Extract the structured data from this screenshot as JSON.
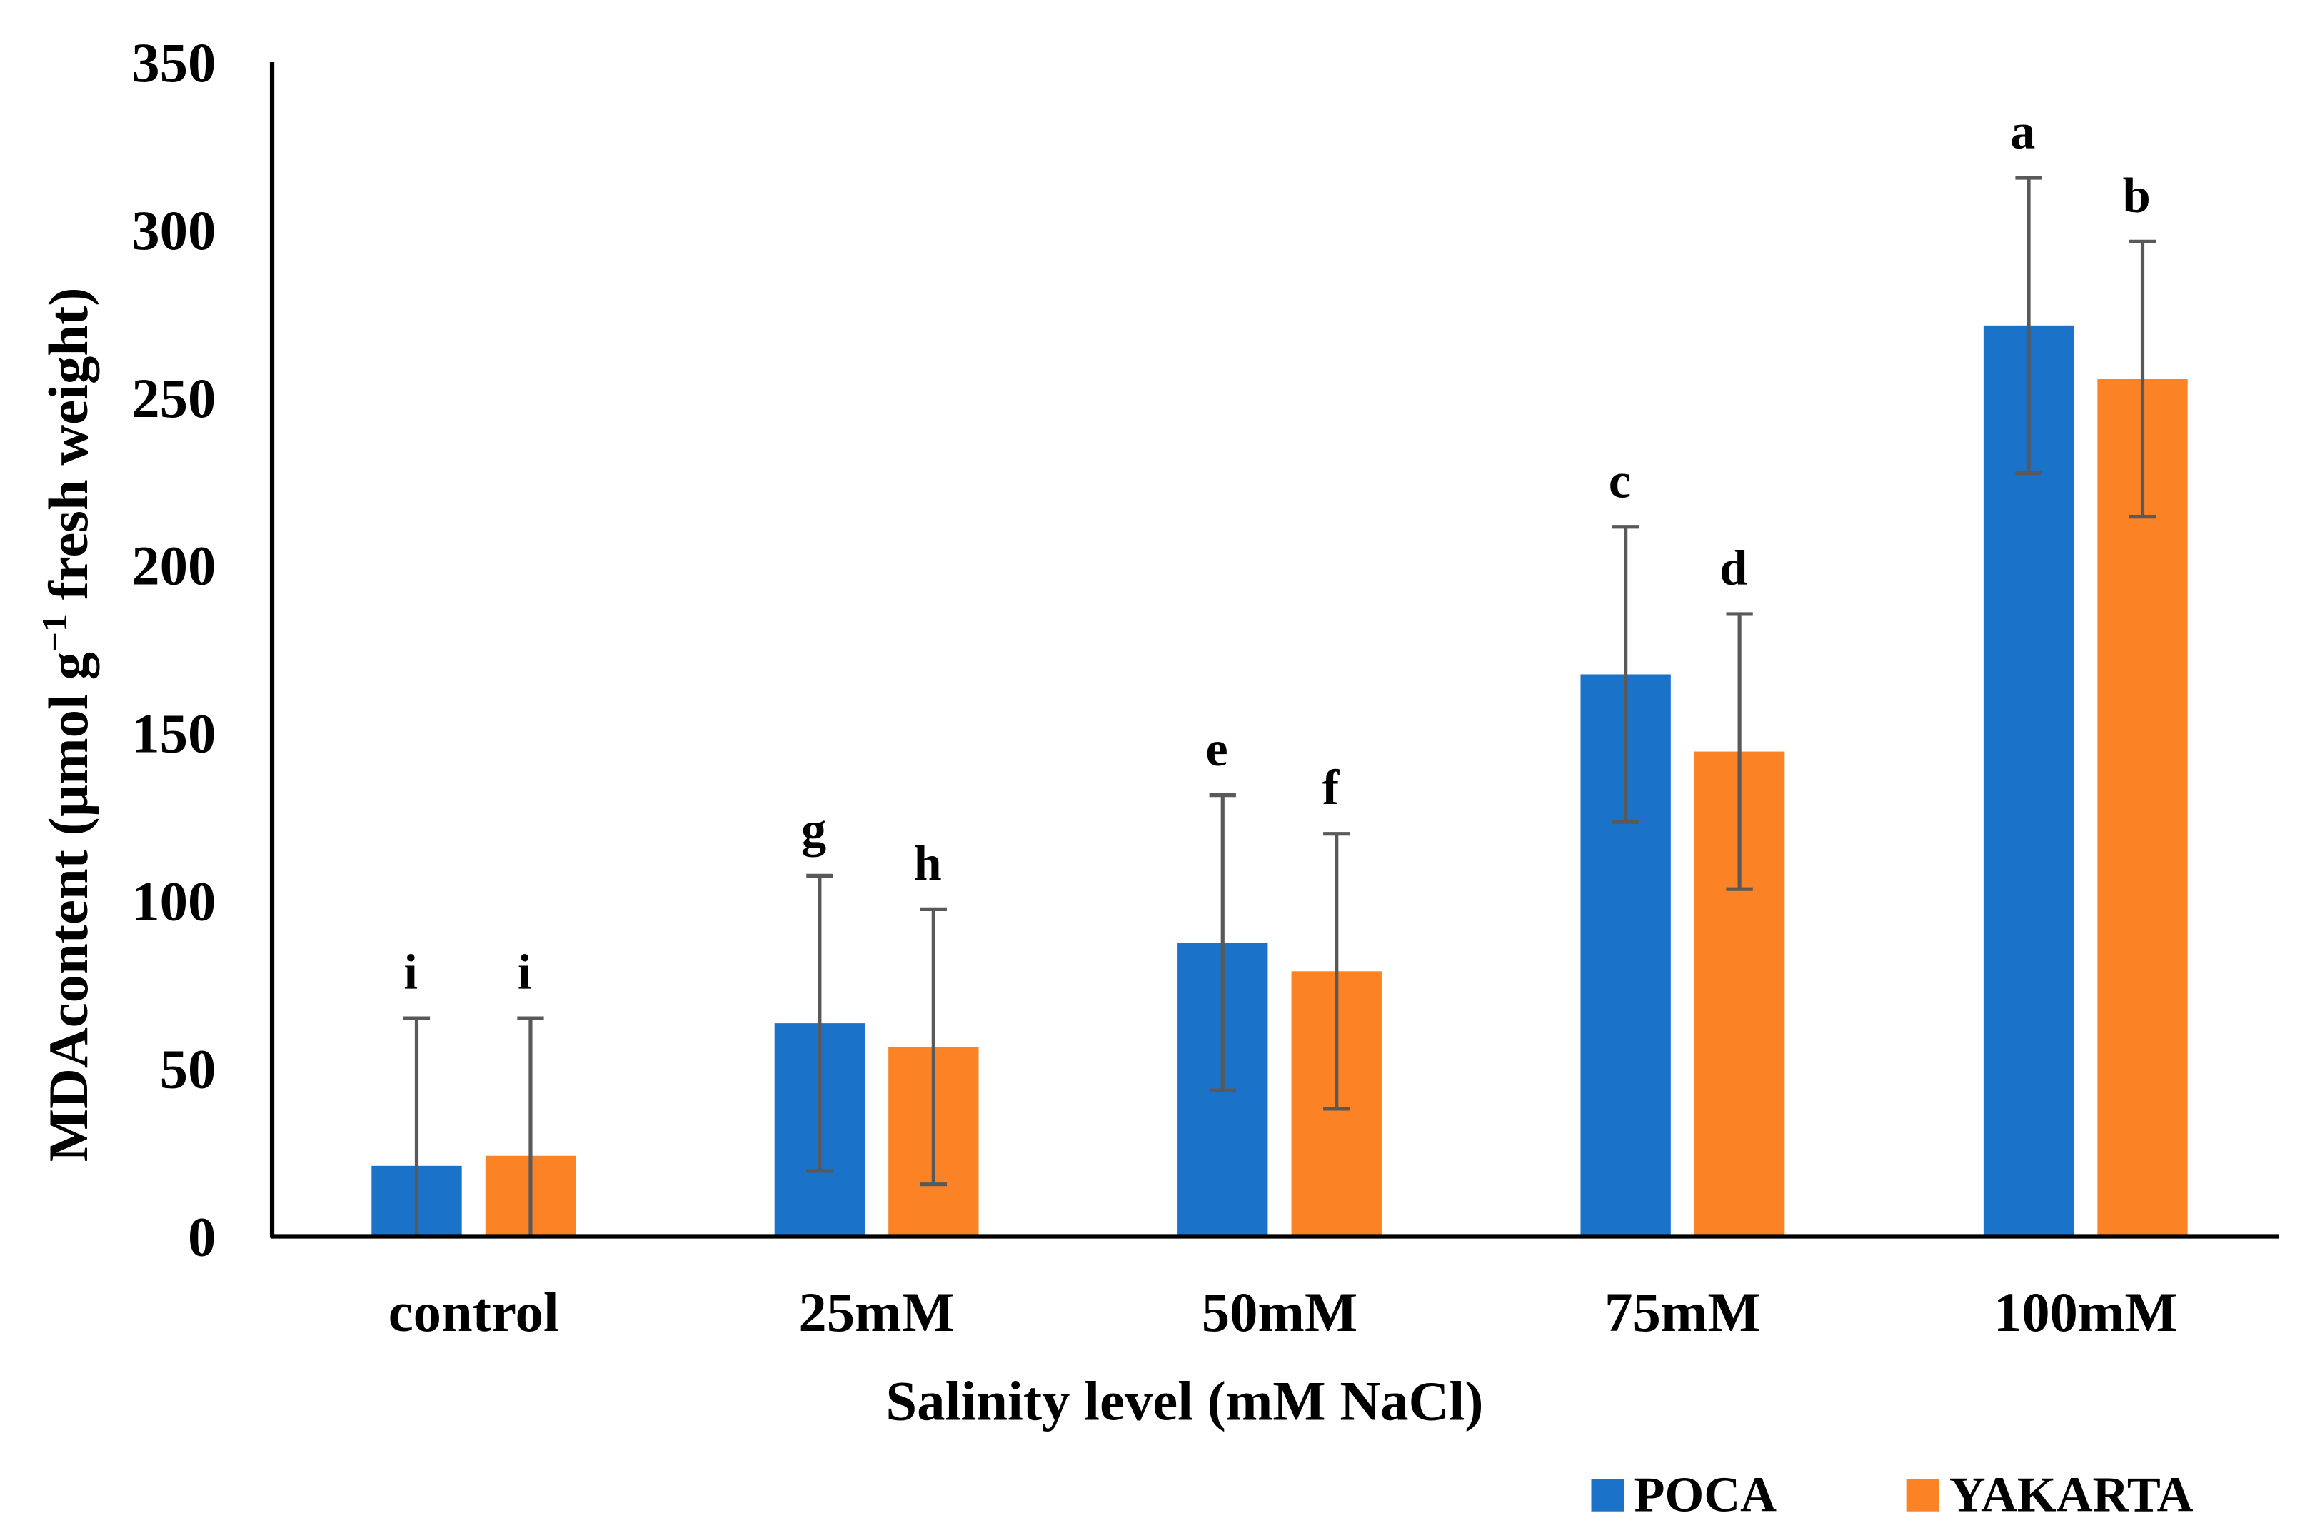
{
  "chart_data": {
    "type": "bar",
    "title": "",
    "xlabel": "Salinity level (mM NaCl)",
    "ylabel_main": "MDAcontent (µmol g",
    "ylabel_sup": "−1",
    "ylabel_tail": " fresh weight)",
    "ylim": [
      0,
      350
    ],
    "yticks": [
      "0",
      "50",
      "100",
      "150",
      "200",
      "250",
      "300",
      "350"
    ],
    "categories": [
      "control",
      "25mM",
      "50mM",
      "75mM",
      "100mM"
    ],
    "legend_position": "bottom-right",
    "series": [
      {
        "name": "POCA",
        "color": "#1a73c9",
        "values": [
          21,
          63.5,
          87.5,
          167.5,
          271.5
        ],
        "errors": [
          44,
          44,
          44,
          44,
          44
        ],
        "letters": [
          "i",
          "g",
          "e",
          "c",
          "a"
        ]
      },
      {
        "name": "YAKARTA",
        "color": "#fb8326",
        "values": [
          24,
          56.5,
          79,
          144.5,
          255.5
        ],
        "errors": [
          41,
          41,
          41,
          41,
          41
        ],
        "letters": [
          "i",
          "h",
          "f",
          "d",
          "b"
        ]
      }
    ]
  }
}
